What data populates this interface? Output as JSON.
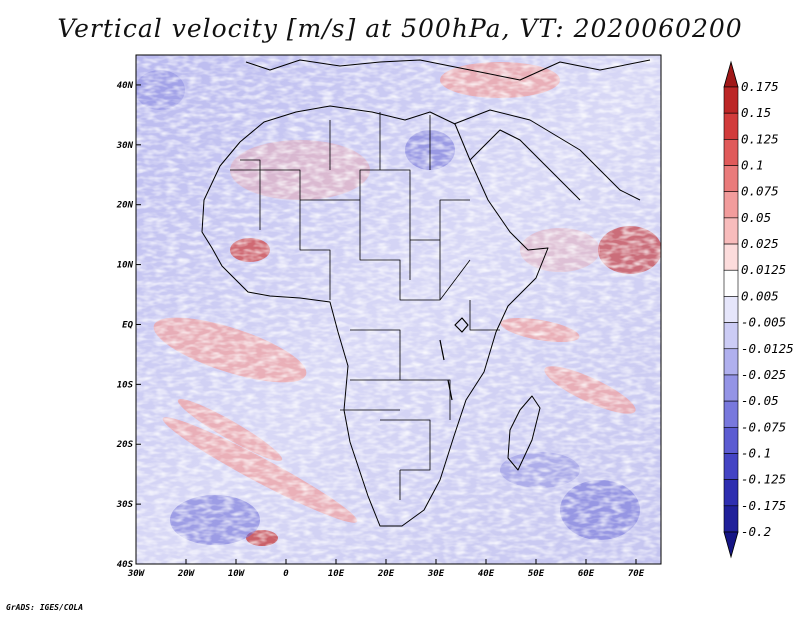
{
  "title": "Vertical velocity [m/s] at 500hPa, VT: 2020060200",
  "credit": "GrADS: IGES/COLA",
  "map": {
    "lon_range": [
      -30,
      75
    ],
    "lat_range": [
      -40,
      45
    ],
    "lon_ticks": [
      "30W",
      "20W",
      "10W",
      "0",
      "10E",
      "20E",
      "30E",
      "40E",
      "50E",
      "60E",
      "70E"
    ],
    "lat_ticks": [
      "40N",
      "30N",
      "20N",
      "10N",
      "EQ",
      "10S",
      "20S",
      "30S",
      "40S"
    ]
  },
  "colorbar": {
    "labels": [
      "0.175",
      "0.15",
      "0.125",
      "0.1",
      "0.075",
      "0.05",
      "0.025",
      "0.0125",
      "0.005",
      "-0.005",
      "-0.0125",
      "-0.025",
      "-0.05",
      "-0.075",
      "-0.1",
      "-0.125",
      "-0.175",
      "-0.2"
    ],
    "colors": [
      "#a01818",
      "#bc2626",
      "#d23b3b",
      "#e05a5a",
      "#ea7b7b",
      "#f29c9c",
      "#f8bcbc",
      "#fcdcdc",
      "#ffffff",
      "#e6e6fb",
      "#ccccf5",
      "#b0b0ee",
      "#9494e6",
      "#7878dd",
      "#5c5cd2",
      "#4444c4",
      "#2e2eb0",
      "#20209a",
      "#151585"
    ]
  }
}
